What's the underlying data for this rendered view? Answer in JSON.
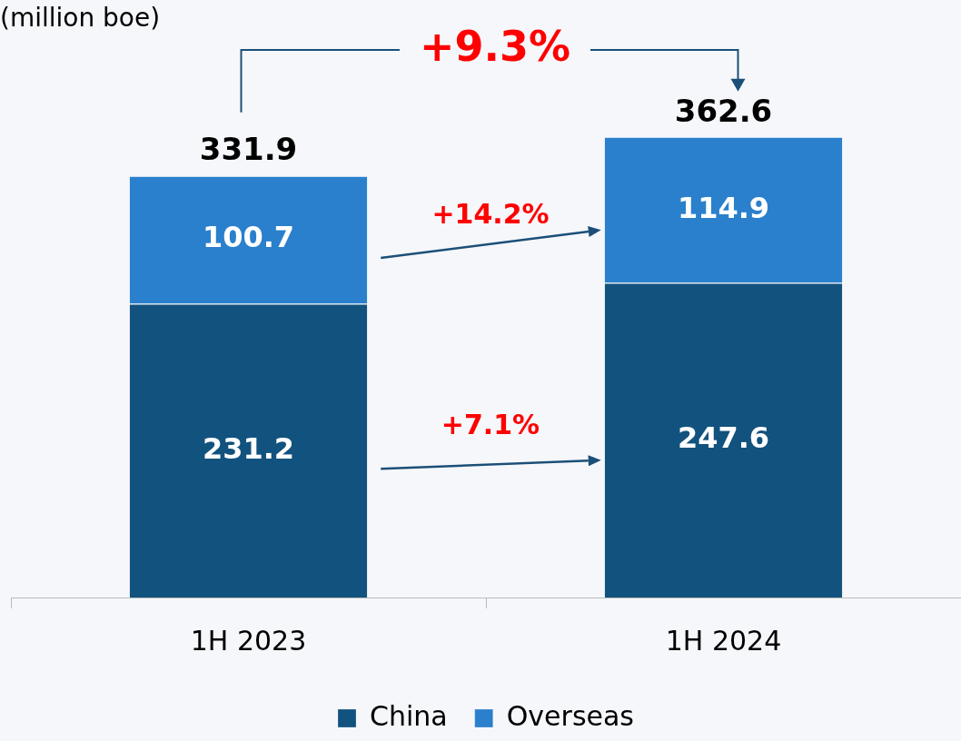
{
  "chart_data": {
    "type": "bar",
    "stacked": true,
    "ylabel": "(million boe)",
    "categories": [
      "1H 2023",
      "1H 2024"
    ],
    "series": [
      {
        "name": "China",
        "color": "#12527e",
        "values": [
          231.2,
          247.6
        ]
      },
      {
        "name": "Overseas",
        "color": "#2a80cc",
        "values": [
          100.7,
          114.9
        ]
      }
    ],
    "data_labels": true,
    "totals": [
      "331.9",
      "362.6"
    ],
    "annotations": [
      "+9.3%",
      "+14.2%",
      "+7.1%"
    ],
    "legend": "bottom",
    "grid": false
  }
}
